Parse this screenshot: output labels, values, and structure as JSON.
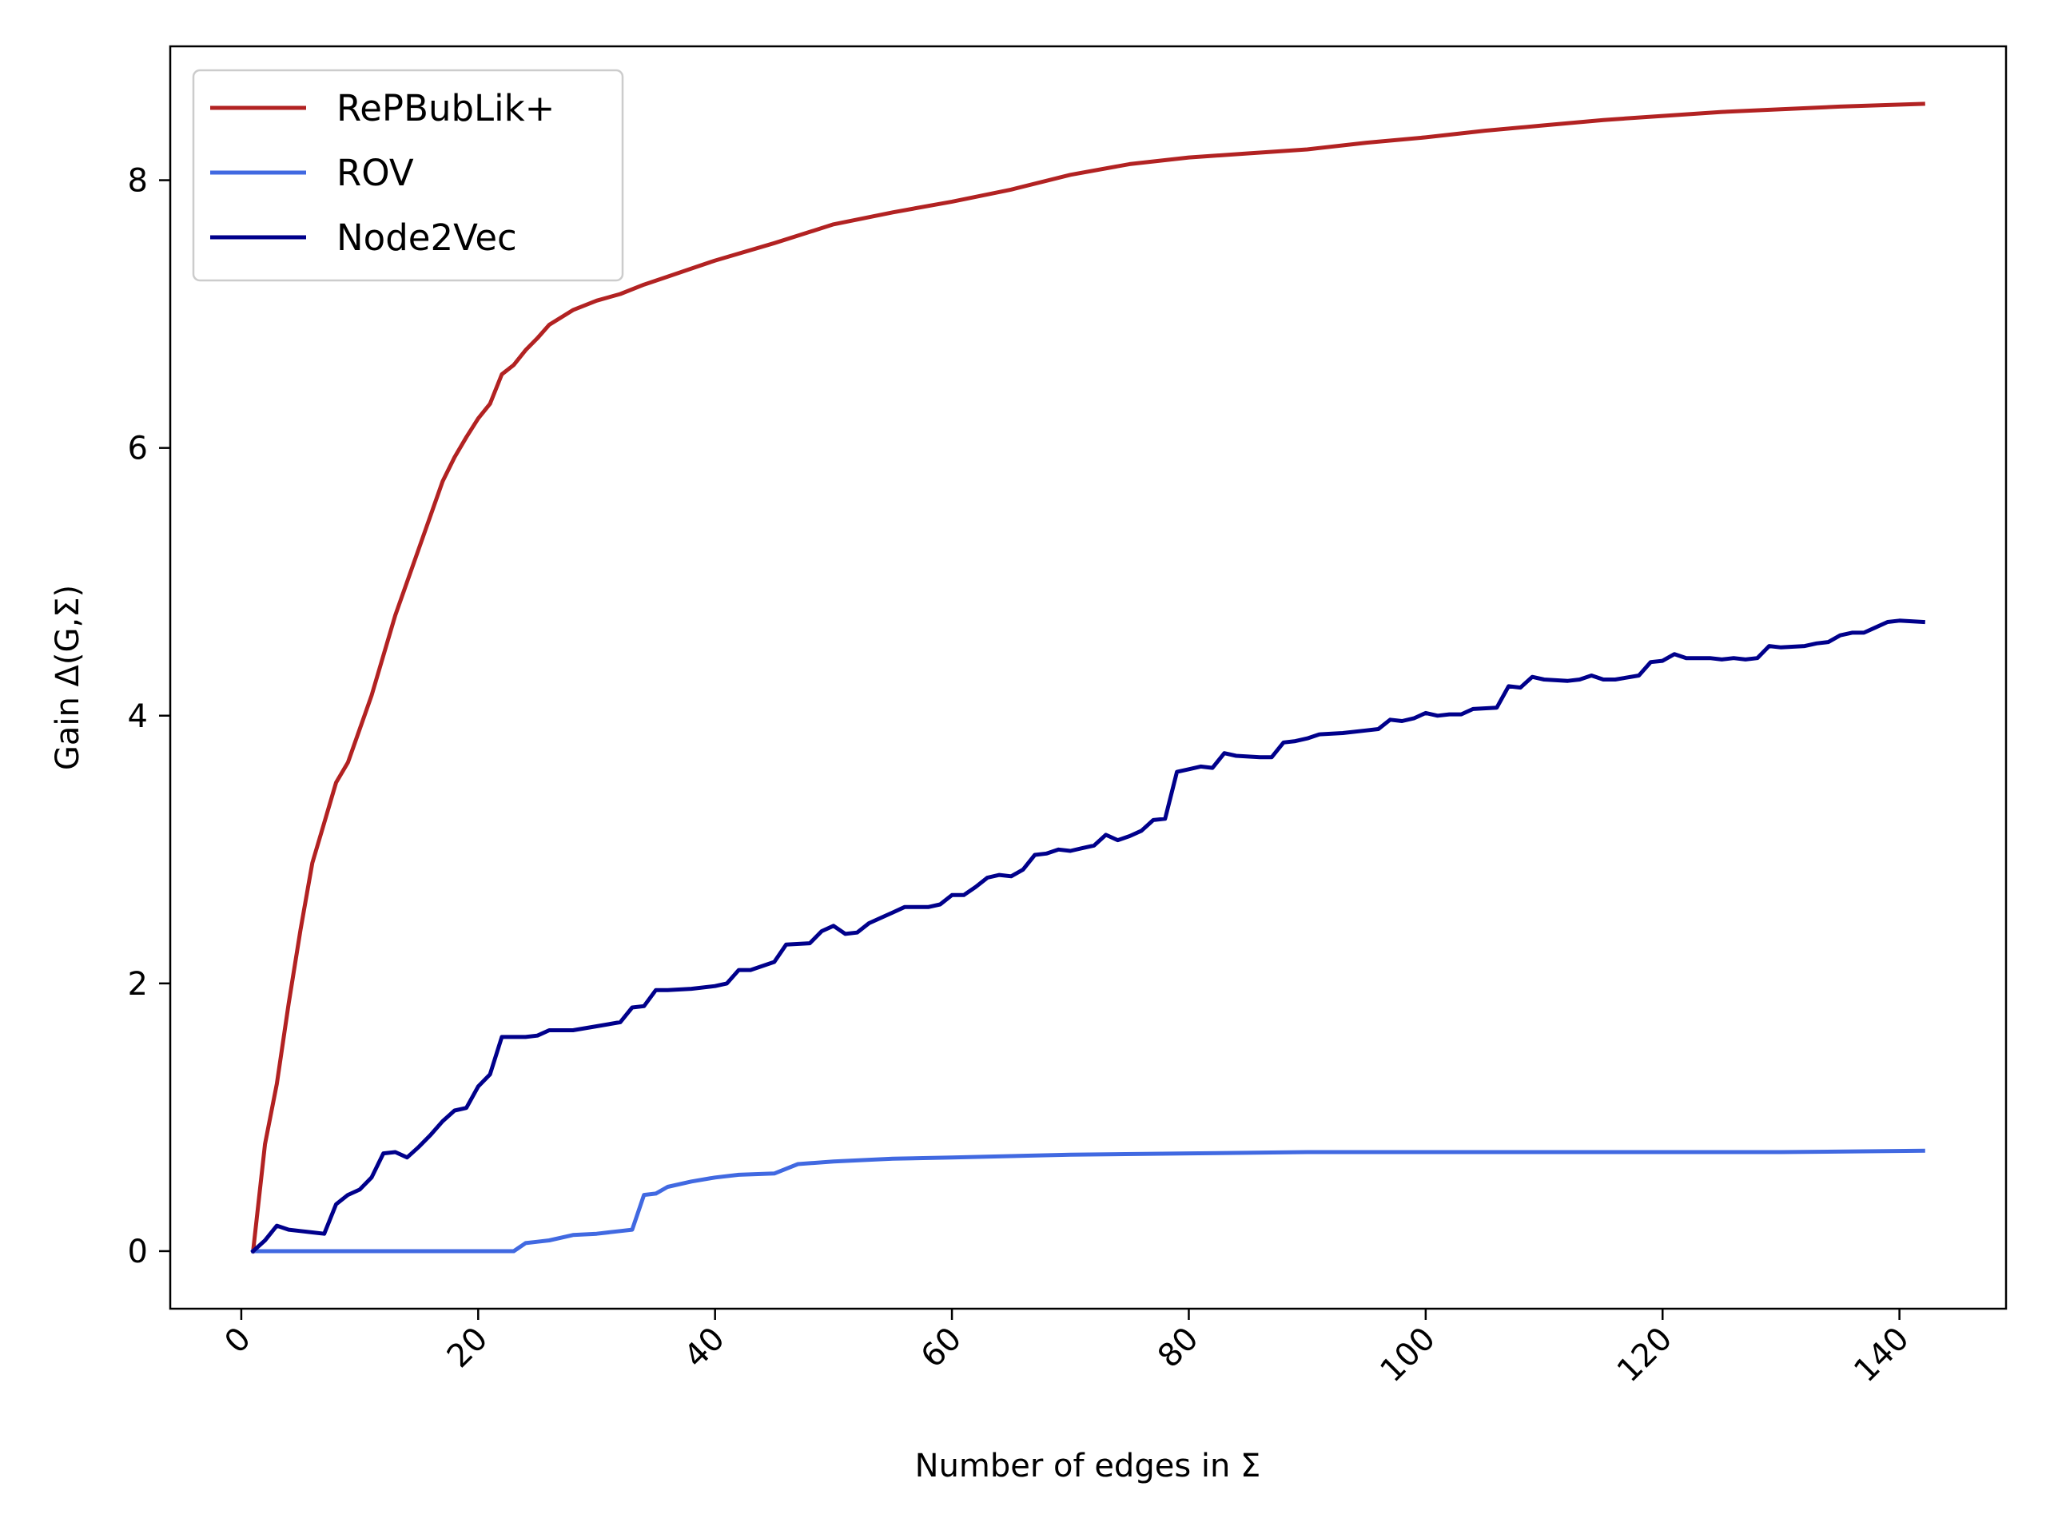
{
  "chart_data": {
    "type": "line",
    "title": "",
    "xlabel": "Number of edges in Σ",
    "ylabel": "Gain Δ(G,Σ)",
    "xlim": [
      -6,
      149
    ],
    "ylim": [
      -0.43,
      9.0
    ],
    "x_ticks": [
      0,
      20,
      40,
      60,
      80,
      100,
      120,
      140
    ],
    "y_ticks": [
      0,
      2,
      4,
      6,
      8
    ],
    "grid": false,
    "legend_position": "upper left",
    "series": [
      {
        "name": "RePBubLik+",
        "color": "#b22222",
        "points": [
          [
            1,
            0
          ],
          [
            2,
            0.8
          ],
          [
            3,
            1.25
          ],
          [
            4,
            1.85
          ],
          [
            5,
            2.4
          ],
          [
            6,
            2.9
          ],
          [
            7,
            3.2
          ],
          [
            8,
            3.5
          ],
          [
            9,
            3.65
          ],
          [
            10,
            3.9
          ],
          [
            11,
            4.15
          ],
          [
            12,
            4.45
          ],
          [
            13,
            4.75
          ],
          [
            14,
            5.0
          ],
          [
            15,
            5.25
          ],
          [
            16,
            5.5
          ],
          [
            17,
            5.75
          ],
          [
            18,
            5.93
          ],
          [
            19,
            6.08
          ],
          [
            20,
            6.22
          ],
          [
            21,
            6.33
          ],
          [
            22,
            6.55
          ],
          [
            23,
            6.62
          ],
          [
            24,
            6.73
          ],
          [
            25,
            6.82
          ],
          [
            26,
            6.92
          ],
          [
            28,
            7.03
          ],
          [
            30,
            7.1
          ],
          [
            32,
            7.15
          ],
          [
            34,
            7.22
          ],
          [
            36,
            7.28
          ],
          [
            38,
            7.34
          ],
          [
            40,
            7.4
          ],
          [
            45,
            7.53
          ],
          [
            50,
            7.67
          ],
          [
            55,
            7.76
          ],
          [
            60,
            7.84
          ],
          [
            65,
            7.93
          ],
          [
            70,
            8.04
          ],
          [
            75,
            8.12
          ],
          [
            80,
            8.17
          ],
          [
            85,
            8.2
          ],
          [
            90,
            8.23
          ],
          [
            95,
            8.28
          ],
          [
            100,
            8.32
          ],
          [
            105,
            8.37
          ],
          [
            110,
            8.41
          ],
          [
            115,
            8.45
          ],
          [
            120,
            8.48
          ],
          [
            125,
            8.51
          ],
          [
            130,
            8.53
          ],
          [
            135,
            8.55
          ],
          [
            142,
            8.57
          ]
        ]
      },
      {
        "name": "ROV",
        "color": "#4169e1",
        "points": [
          [
            1,
            0
          ],
          [
            10,
            0
          ],
          [
            20,
            0
          ],
          [
            23,
            0
          ],
          [
            24,
            0.06
          ],
          [
            25,
            0.07
          ],
          [
            26,
            0.08
          ],
          [
            28,
            0.12
          ],
          [
            30,
            0.13
          ],
          [
            32,
            0.15
          ],
          [
            33,
            0.16
          ],
          [
            34,
            0.42
          ],
          [
            35,
            0.43
          ],
          [
            36,
            0.48
          ],
          [
            38,
            0.52
          ],
          [
            40,
            0.55
          ],
          [
            42,
            0.57
          ],
          [
            45,
            0.58
          ],
          [
            47,
            0.65
          ],
          [
            50,
            0.67
          ],
          [
            55,
            0.69
          ],
          [
            60,
            0.7
          ],
          [
            65,
            0.71
          ],
          [
            70,
            0.72
          ],
          [
            80,
            0.73
          ],
          [
            90,
            0.74
          ],
          [
            100,
            0.74
          ],
          [
            110,
            0.74
          ],
          [
            120,
            0.74
          ],
          [
            130,
            0.74
          ],
          [
            142,
            0.75
          ]
        ]
      },
      {
        "name": "Node2Vec",
        "color": "#00008b",
        "points": [
          [
            1,
            0
          ],
          [
            2,
            0.08
          ],
          [
            3,
            0.19
          ],
          [
            4,
            0.16
          ],
          [
            5,
            0.15
          ],
          [
            6,
            0.14
          ],
          [
            7,
            0.13
          ],
          [
            8,
            0.35
          ],
          [
            9,
            0.42
          ],
          [
            10,
            0.46
          ],
          [
            11,
            0.55
          ],
          [
            12,
            0.73
          ],
          [
            13,
            0.74
          ],
          [
            14,
            0.7
          ],
          [
            15,
            0.78
          ],
          [
            16,
            0.87
          ],
          [
            17,
            0.97
          ],
          [
            18,
            1.05
          ],
          [
            19,
            1.07
          ],
          [
            20,
            1.23
          ],
          [
            21,
            1.32
          ],
          [
            22,
            1.6
          ],
          [
            23,
            1.6
          ],
          [
            24,
            1.6
          ],
          [
            25,
            1.61
          ],
          [
            26,
            1.65
          ],
          [
            27,
            1.65
          ],
          [
            28,
            1.65
          ],
          [
            30,
            1.68
          ],
          [
            32,
            1.71
          ],
          [
            33,
            1.82
          ],
          [
            34,
            1.83
          ],
          [
            35,
            1.95
          ],
          [
            36,
            1.95
          ],
          [
            38,
            1.96
          ],
          [
            40,
            1.98
          ],
          [
            41,
            2.0
          ],
          [
            42,
            2.1
          ],
          [
            43,
            2.1
          ],
          [
            45,
            2.16
          ],
          [
            46,
            2.29
          ],
          [
            48,
            2.3
          ],
          [
            49,
            2.39
          ],
          [
            50,
            2.43
          ],
          [
            51,
            2.37
          ],
          [
            52,
            2.38
          ],
          [
            53,
            2.45
          ],
          [
            55,
            2.53
          ],
          [
            56,
            2.57
          ],
          [
            58,
            2.57
          ],
          [
            59,
            2.59
          ],
          [
            60,
            2.66
          ],
          [
            61,
            2.66
          ],
          [
            62,
            2.72
          ],
          [
            63,
            2.79
          ],
          [
            64,
            2.81
          ],
          [
            65,
            2.8
          ],
          [
            66,
            2.85
          ],
          [
            67,
            2.96
          ],
          [
            68,
            2.97
          ],
          [
            69,
            3.0
          ],
          [
            70,
            2.99
          ],
          [
            71,
            3.01
          ],
          [
            72,
            3.03
          ],
          [
            73,
            3.11
          ],
          [
            74,
            3.07
          ],
          [
            75,
            3.1
          ],
          [
            76,
            3.14
          ],
          [
            77,
            3.22
          ],
          [
            78,
            3.23
          ],
          [
            79,
            3.58
          ],
          [
            80,
            3.6
          ],
          [
            81,
            3.62
          ],
          [
            82,
            3.61
          ],
          [
            83,
            3.72
          ],
          [
            84,
            3.7
          ],
          [
            86,
            3.69
          ],
          [
            87,
            3.69
          ],
          [
            88,
            3.8
          ],
          [
            89,
            3.81
          ],
          [
            90,
            3.83
          ],
          [
            91,
            3.86
          ],
          [
            93,
            3.87
          ],
          [
            95,
            3.89
          ],
          [
            96,
            3.9
          ],
          [
            97,
            3.97
          ],
          [
            98,
            3.96
          ],
          [
            99,
            3.98
          ],
          [
            100,
            4.02
          ],
          [
            101,
            4.0
          ],
          [
            102,
            4.01
          ],
          [
            103,
            4.01
          ],
          [
            104,
            4.05
          ],
          [
            106,
            4.06
          ],
          [
            107,
            4.22
          ],
          [
            108,
            4.21
          ],
          [
            109,
            4.29
          ],
          [
            110,
            4.27
          ],
          [
            112,
            4.26
          ],
          [
            113,
            4.27
          ],
          [
            114,
            4.3
          ],
          [
            115,
            4.27
          ],
          [
            116,
            4.27
          ],
          [
            118,
            4.3
          ],
          [
            119,
            4.4
          ],
          [
            120,
            4.41
          ],
          [
            121,
            4.46
          ],
          [
            122,
            4.43
          ],
          [
            124,
            4.43
          ],
          [
            125,
            4.42
          ],
          [
            126,
            4.43
          ],
          [
            127,
            4.42
          ],
          [
            128,
            4.43
          ],
          [
            129,
            4.52
          ],
          [
            130,
            4.51
          ],
          [
            132,
            4.52
          ],
          [
            133,
            4.54
          ],
          [
            134,
            4.55
          ],
          [
            135,
            4.6
          ],
          [
            136,
            4.62
          ],
          [
            137,
            4.62
          ],
          [
            138,
            4.66
          ],
          [
            139,
            4.7
          ],
          [
            140,
            4.71
          ],
          [
            142,
            4.7
          ]
        ]
      }
    ]
  }
}
